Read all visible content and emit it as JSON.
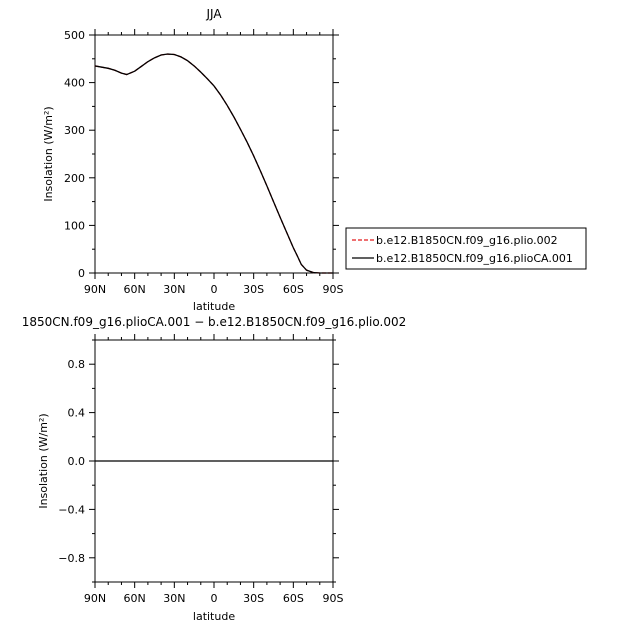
{
  "chart_data": [
    {
      "type": "line",
      "title": "JJA",
      "xlabel": "latitude",
      "ylabel": "Insolation  (W/m²)",
      "xlim": [
        90,
        -90
      ],
      "ylim": [
        0,
        500
      ],
      "x_tick_values": [
        90,
        60,
        30,
        0,
        -30,
        -60,
        -90
      ],
      "x_tick_labels": [
        "90N",
        "60N",
        "30N",
        "0",
        "30S",
        "60S",
        "90S"
      ],
      "y_tick_values": [
        0,
        100,
        200,
        300,
        400,
        500
      ],
      "y_tick_labels": [
        "0",
        "100",
        "200",
        "300",
        "400",
        "500"
      ],
      "x": [
        90,
        80,
        75,
        70,
        66,
        60,
        55,
        50,
        45,
        40,
        35,
        30,
        25,
        20,
        15,
        10,
        5,
        0,
        -5,
        -10,
        -15,
        -20,
        -25,
        -30,
        -35,
        -40,
        -45,
        -50,
        -55,
        -60,
        -63,
        -66,
        -70,
        -75,
        -80,
        -85,
        -90
      ],
      "series": [
        {
          "name": "b.e12.B1850CN.f09_g16.plio.002",
          "color": "#e41a1c",
          "dash": "dashed",
          "values": [
            435,
            430,
            426,
            420,
            417,
            424,
            434,
            444,
            452,
            458,
            460,
            459,
            454,
            446,
            435,
            422,
            408,
            393,
            374,
            352,
            328,
            302,
            275,
            246,
            215,
            183,
            150,
            117,
            85,
            53,
            36,
            18,
            6,
            1,
            0,
            0,
            0
          ]
        },
        {
          "name": "b.e12.B1850CN.f09_g16.plioCA.001",
          "color": "#000000",
          "dash": "solid",
          "values": [
            435,
            430,
            426,
            420,
            417,
            424,
            434,
            444,
            452,
            458,
            460,
            459,
            454,
            446,
            435,
            422,
            408,
            393,
            374,
            352,
            328,
            302,
            275,
            246,
            215,
            183,
            150,
            117,
            85,
            53,
            36,
            18,
            6,
            1,
            0,
            0,
            0
          ]
        }
      ]
    },
    {
      "type": "line",
      "title": "1850CN.f09_g16.plioCA.001 − b.e12.B1850CN.f09_g16.plio.002",
      "xlabel": "latitude",
      "ylabel": "Insolation  (W/m²)",
      "xlim": [
        90,
        -90
      ],
      "ylim": [
        -1,
        1
      ],
      "x_tick_values": [
        90,
        60,
        30,
        0,
        -30,
        -60,
        -90
      ],
      "x_tick_labels": [
        "90N",
        "60N",
        "30N",
        "0",
        "30S",
        "60S",
        "90S"
      ],
      "y_tick_values": [
        -0.8,
        -0.4,
        0.0,
        0.4,
        0.8
      ],
      "y_tick_labels": [
        "−0.8",
        "−0.4",
        "0.0",
        "0.4",
        "0.8"
      ],
      "x": [
        90,
        -90
      ],
      "series": [
        {
          "color": "#000000",
          "dash": "solid",
          "values": [
            0,
            0
          ]
        }
      ]
    }
  ]
}
